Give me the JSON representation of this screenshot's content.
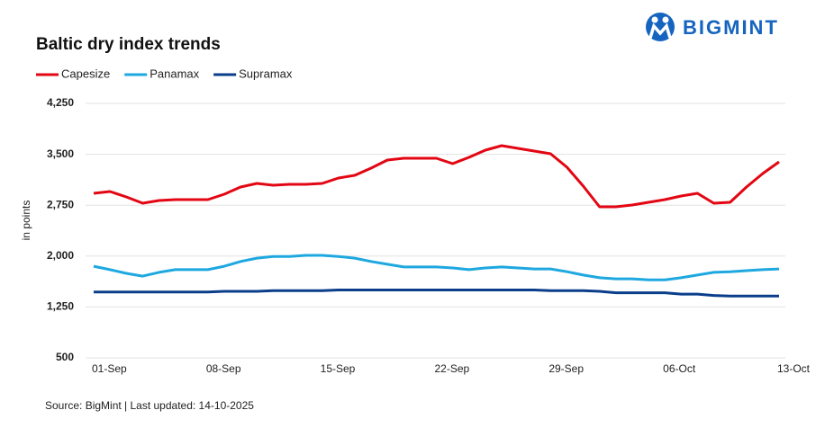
{
  "brand": "BIGMINT",
  "chart_data": {
    "type": "line",
    "title": "Baltic dry index trends",
    "y_label": "in points",
    "source": "Source: BigMint | Last updated: 14-10-2025",
    "categories": [
      "01-Sep",
      null,
      null,
      null,
      null,
      null,
      null,
      "08-Sep",
      null,
      null,
      null,
      null,
      null,
      null,
      "15-Sep",
      null,
      null,
      null,
      null,
      null,
      null,
      "22-Sep",
      null,
      null,
      null,
      null,
      null,
      null,
      "29-Sep",
      null,
      null,
      null,
      null,
      null,
      null,
      "06-Oct",
      null,
      null,
      null,
      null,
      null,
      null,
      "13-Oct"
    ],
    "series": [
      {
        "name": "Capesize",
        "color": "#e30613",
        "values": [
          2925,
          2951,
          2872,
          2779,
          2819,
          2832,
          2832,
          2832,
          2912,
          3018,
          3071,
          3044,
          3057,
          3057,
          3071,
          3150,
          3190,
          3296,
          3415,
          3442,
          3442,
          3442,
          3362,
          3455,
          3561,
          3627,
          3587,
          3548,
          3508,
          3309,
          3031,
          2726,
          2726,
          2753,
          2792,
          2832,
          2885,
          2925,
          2779,
          2792,
          3018,
          3216,
          3389
        ]
      },
      {
        "name": "Panamax",
        "color": "#1ea8e0",
        "values": [
          1850,
          1800,
          1745,
          1705,
          1760,
          1800,
          1800,
          1800,
          1850,
          1920,
          1970,
          1995,
          1995,
          2010,
          2010,
          1995,
          1970,
          1920,
          1880,
          1840,
          1840,
          1840,
          1825,
          1800,
          1825,
          1840,
          1825,
          1810,
          1810,
          1770,
          1720,
          1680,
          1665,
          1665,
          1650,
          1650,
          1680,
          1720,
          1760,
          1770,
          1785,
          1800,
          1810
        ]
      },
      {
        "name": "Supramax",
        "color": "#0a3e8a",
        "values": [
          1470,
          1470,
          1470,
          1470,
          1470,
          1470,
          1470,
          1470,
          1480,
          1480,
          1480,
          1490,
          1490,
          1490,
          1490,
          1500,
          1500,
          1500,
          1500,
          1500,
          1500,
          1500,
          1500,
          1500,
          1500,
          1500,
          1500,
          1500,
          1490,
          1490,
          1490,
          1480,
          1460,
          1460,
          1460,
          1460,
          1440,
          1440,
          1420,
          1410,
          1410,
          1410,
          1410
        ]
      }
    ],
    "ylim": [
      500,
      4250
    ],
    "yticks": [
      500,
      {
        "value": 1250,
        "label": "1,250"
      },
      {
        "value": 2000,
        "label": "2,000"
      },
      {
        "value": 2750,
        "label": "2,750"
      },
      {
        "value": 3500,
        "label": "3,500"
      },
      {
        "value": 4250,
        "label": "4,250"
      }
    ],
    "grid": true,
    "legend": "top-left"
  }
}
